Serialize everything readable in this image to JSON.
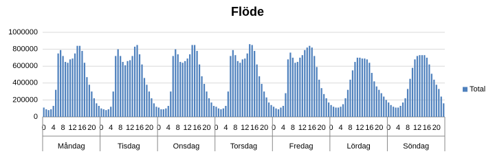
{
  "chart_data": {
    "type": "bar",
    "title": "Flöde",
    "categories": [
      "0",
      null,
      null,
      null,
      "4",
      null,
      null,
      null,
      "8",
      null,
      null,
      null,
      "12",
      null,
      null,
      null,
      "16",
      null,
      null,
      null,
      "20",
      null,
      null,
      null,
      "0",
      null,
      null,
      null,
      "4",
      null,
      null,
      null,
      "8",
      null,
      null,
      null,
      "12",
      null,
      null,
      null,
      "16",
      null,
      null,
      null,
      "20",
      null,
      null,
      null,
      "0",
      null,
      null,
      null,
      "4",
      null,
      null,
      null,
      "8",
      null,
      null,
      null,
      "12",
      null,
      null,
      null,
      "16",
      null,
      null,
      null,
      "20",
      null,
      null,
      null,
      "0",
      null,
      null,
      null,
      "4",
      null,
      null,
      null,
      "8",
      null,
      null,
      null,
      "12",
      null,
      null,
      null,
      "16",
      null,
      null,
      null,
      "20",
      null,
      null,
      null,
      "0",
      null,
      null,
      null,
      "4",
      null,
      null,
      null,
      "8",
      null,
      null,
      null,
      "12",
      null,
      null,
      null,
      "16",
      null,
      null,
      null,
      "20",
      null,
      null,
      null,
      "0",
      null,
      null,
      null,
      "4",
      null,
      null,
      null,
      "8",
      null,
      null,
      null,
      "12",
      null,
      null,
      null,
      "16",
      null,
      null,
      null,
      "20",
      null,
      null,
      null,
      "0",
      null,
      null,
      null,
      "4",
      null,
      null,
      null,
      "8",
      null,
      null,
      null,
      "12",
      null,
      null,
      null,
      "16",
      null,
      null,
      null,
      "20",
      null,
      null,
      null
    ],
    "category_groups": [
      "Måndag",
      "Tisdag",
      "Onsdag",
      "Torsdag",
      "Fredag",
      "Lördag",
      "Söndag"
    ],
    "series": [
      {
        "name": "Total",
        "color": "#4f81bd",
        "values": [
          110000,
          90000,
          80000,
          90000,
          130000,
          320000,
          750000,
          790000,
          720000,
          650000,
          640000,
          680000,
          690000,
          750000,
          840000,
          840000,
          780000,
          640000,
          470000,
          380000,
          300000,
          220000,
          160000,
          130000,
          100000,
          90000,
          80000,
          90000,
          120000,
          300000,
          720000,
          800000,
          720000,
          650000,
          610000,
          660000,
          670000,
          720000,
          830000,
          850000,
          740000,
          620000,
          460000,
          380000,
          300000,
          220000,
          160000,
          120000,
          110000,
          90000,
          90000,
          100000,
          130000,
          300000,
          720000,
          800000,
          740000,
          650000,
          640000,
          660000,
          690000,
          740000,
          850000,
          850000,
          780000,
          620000,
          480000,
          390000,
          300000,
          220000,
          170000,
          130000,
          120000,
          100000,
          90000,
          100000,
          130000,
          300000,
          720000,
          790000,
          730000,
          660000,
          640000,
          680000,
          690000,
          750000,
          860000,
          850000,
          780000,
          620000,
          480000,
          390000,
          300000,
          230000,
          170000,
          140000,
          120000,
          100000,
          90000,
          110000,
          130000,
          280000,
          680000,
          760000,
          700000,
          640000,
          650000,
          700000,
          730000,
          790000,
          820000,
          840000,
          820000,
          720000,
          590000,
          440000,
          340000,
          270000,
          220000,
          170000,
          140000,
          120000,
          110000,
          110000,
          120000,
          150000,
          220000,
          320000,
          440000,
          550000,
          650000,
          700000,
          700000,
          690000,
          690000,
          680000,
          640000,
          520000,
          420000,
          360000,
          320000,
          280000,
          240000,
          200000,
          170000,
          140000,
          120000,
          110000,
          110000,
          130000,
          170000,
          220000,
          330000,
          450000,
          580000,
          680000,
          720000,
          730000,
          730000,
          730000,
          700000,
          620000,
          510000,
          440000,
          380000,
          330000,
          240000,
          160000
        ]
      }
    ],
    "ylim": [
      0,
      1000000
    ],
    "yticks": [
      0,
      200000,
      400000,
      600000,
      800000,
      1000000
    ],
    "grid": true,
    "legend": "right"
  }
}
